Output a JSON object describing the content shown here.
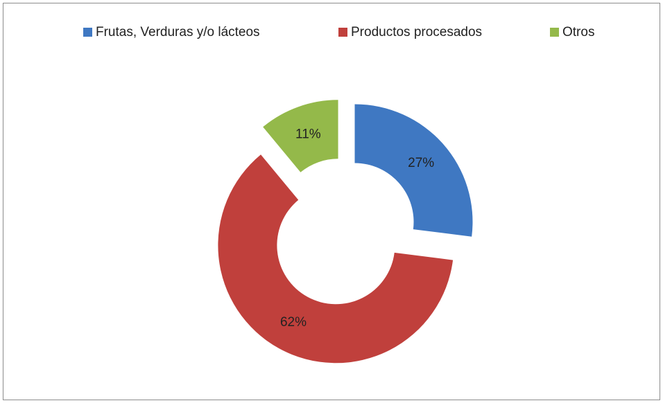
{
  "chart_data": {
    "type": "donut",
    "categories": [
      "Frutas, Verduras y/o lácteos",
      "Productos procesados",
      "Otros"
    ],
    "values": [
      27,
      62,
      11
    ],
    "value_labels": [
      "27%",
      "62%",
      "11%"
    ],
    "colors": [
      "#3f78c2",
      "#c0403c",
      "#94b94a"
    ]
  }
}
